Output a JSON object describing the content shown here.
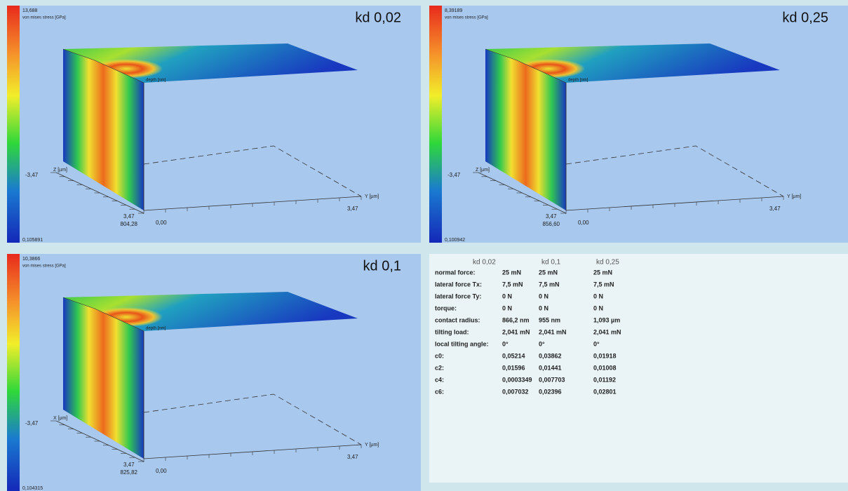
{
  "panels": [
    {
      "title": "kd 0,02",
      "colorbar": {
        "max": "13,688",
        "label": "von mises stress [GPa]",
        "min": "0,105891"
      },
      "axes": {
        "z_label": "Z [µm]",
        "x_min": "-3,47",
        "x_max": "3,47",
        "depth_max": "804,28",
        "depth_zero": "0,00",
        "y_max": "3,47",
        "y_label": "Y [µm]",
        "depth_label": "depth [nm]"
      }
    },
    {
      "title": "kd 0,25",
      "colorbar": {
        "max": "8,39189",
        "label": "von mises stress [GPa]",
        "min": "0,100942"
      },
      "axes": {
        "z_label": "Z [µm]",
        "x_min": "-3,47",
        "x_max": "3,47",
        "depth_max": "856,60",
        "depth_zero": "0,00",
        "y_max": "3,47",
        "y_label": "Y [µm]",
        "depth_label": "depth [nm]"
      }
    },
    {
      "title": "kd 0,1",
      "colorbar": {
        "max": "10,3866",
        "label": "von mises stress [GPa]",
        "min": "0,104315"
      },
      "axes": {
        "z_label": "X [µm]",
        "x_min": "-3,47",
        "x_max": "3,47",
        "depth_max": "825,82",
        "depth_zero": "0,00",
        "y_max": "3,47",
        "y_label": "Y [µm]",
        "depth_label": "depth [nm]"
      }
    }
  ],
  "table": {
    "columns": [
      "kd 0,02",
      "kd 0,1",
      "kd 0,25"
    ],
    "rows": [
      [
        "normal force:",
        "25 mN",
        "25 mN",
        "25 mN"
      ],
      [
        "lateral force Tx:",
        "7,5 mN",
        "7,5 mN",
        "7,5 mN"
      ],
      [
        "lateral force Ty:",
        "0  N",
        "0  N",
        "0  N"
      ],
      [
        "torque:",
        "0  N",
        "0  N",
        "0  N"
      ],
      [
        "contact radius:",
        "866,2 nm",
        "955 nm",
        "1,093 µm"
      ],
      [
        "tilting load:",
        "2,041 mN",
        "2,041 mN",
        "2,041 mN"
      ],
      [
        "local tilting angle:",
        "0°",
        "0°",
        "0°"
      ],
      [
        "c0:",
        "0,05214",
        "0,03862",
        "0,01918"
      ],
      [
        "c2:",
        "0,01596",
        "0,01441",
        "0,01008"
      ],
      [
        "c4:",
        "0,0003349",
        "0,007703",
        "0,01192"
      ],
      [
        "c6:",
        "0,007032",
        "0,02396",
        "0,02801"
      ]
    ]
  }
}
